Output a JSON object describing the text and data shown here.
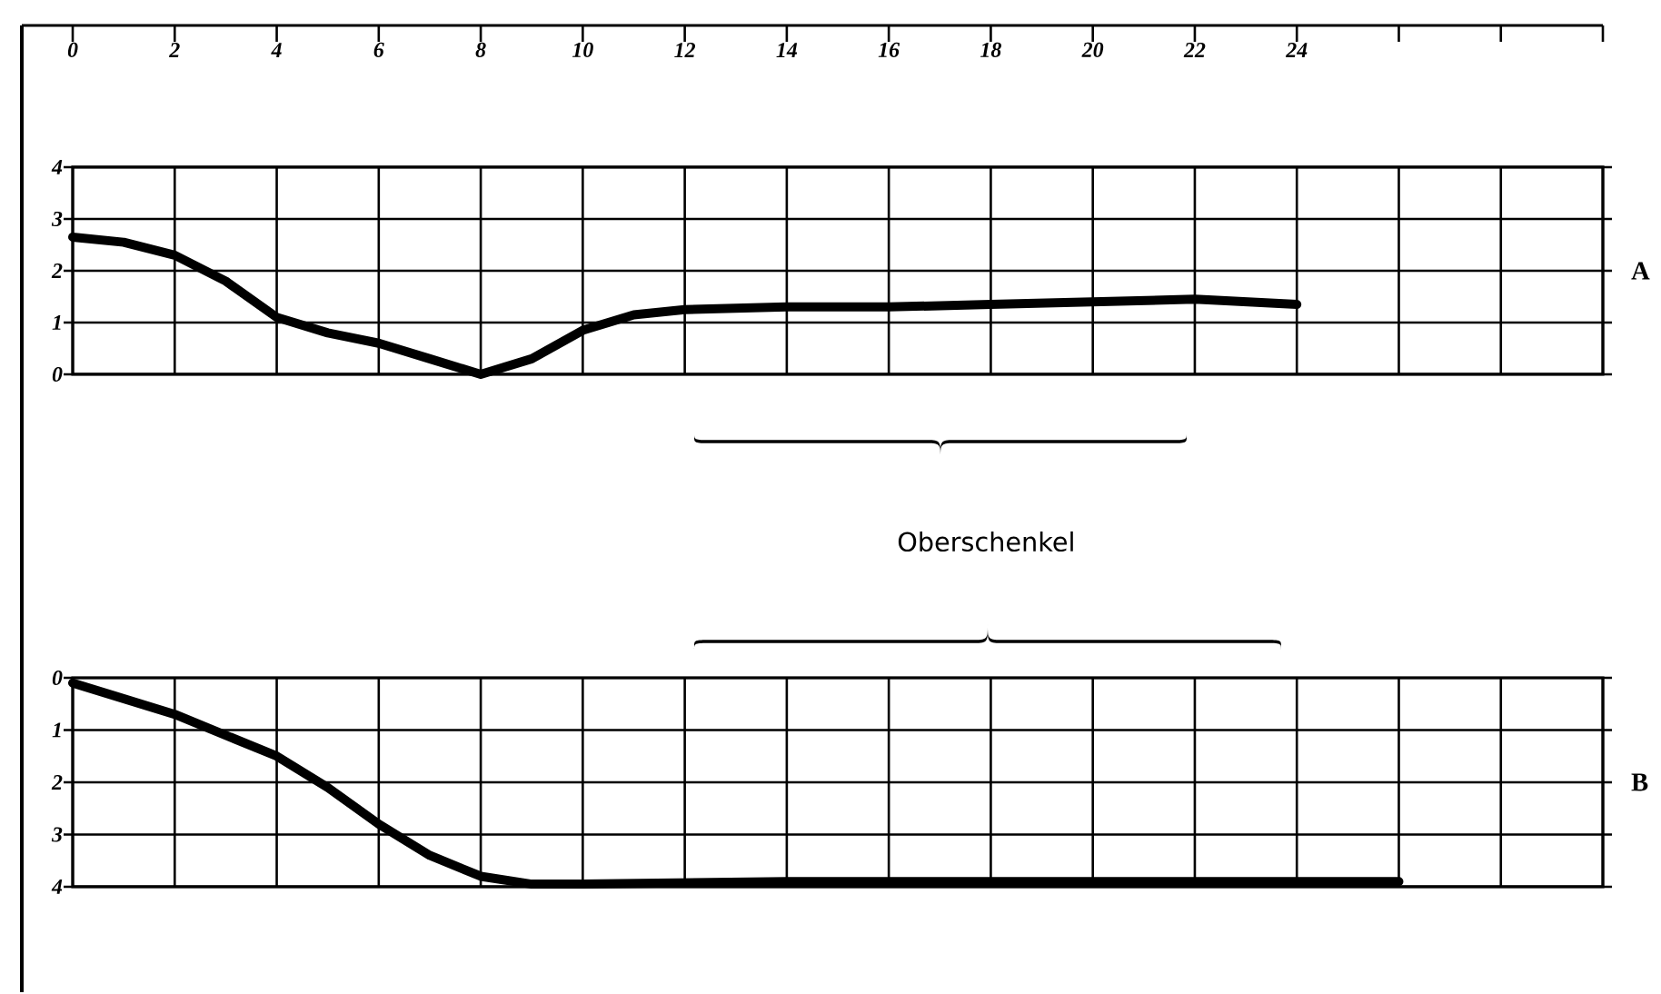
{
  "chart_data": [
    {
      "type": "line",
      "x": [
        0,
        1,
        2,
        3,
        4,
        5,
        6,
        7,
        8,
        9,
        10,
        11,
        12,
        14,
        16,
        18,
        20,
        22,
        24
      ],
      "values": [
        2.65,
        2.55,
        2.3,
        1.8,
        1.1,
        0.8,
        0.6,
        0.3,
        0.0,
        0.3,
        0.85,
        1.15,
        1.25,
        1.3,
        1.3,
        1.35,
        1.4,
        1.45,
        1.35
      ],
      "color": "#000000",
      "xlim": [
        0,
        30
      ],
      "xticks": [
        0,
        2,
        4,
        6,
        8,
        10,
        12,
        14,
        16,
        18,
        20,
        22,
        24,
        {
          "value": 26,
          "label": null
        },
        {
          "value": 28,
          "label": null
        },
        {
          "value": 30,
          "label": null
        }
      ],
      "ylim": [
        0,
        4
      ],
      "yticks": [
        0,
        1,
        2,
        3,
        4
      ],
      "grid": true,
      "annotations": [
        "A"
      ]
    },
    {
      "type": "line",
      "x": [
        0,
        2,
        4,
        5,
        6,
        7,
        8,
        9,
        10,
        14,
        18,
        22,
        26
      ],
      "values": [
        0.1,
        0.7,
        1.5,
        2.1,
        2.8,
        3.4,
        3.8,
        3.95,
        3.95,
        3.9,
        3.9,
        3.9,
        3.9
      ],
      "color": "#000000",
      "xlim": [
        0,
        30
      ],
      "xticks": [
        0,
        2,
        4,
        6,
        8,
        10,
        12,
        14,
        16,
        18,
        20,
        22,
        24,
        26,
        28,
        30
      ],
      "ylim": [
        4,
        0
      ],
      "yticks": [
        0,
        1,
        2,
        3,
        4
      ],
      "grid": true,
      "tick_labels": "y",
      "annotations": [
        "Oberschenkel",
        "B"
      ]
    }
  ]
}
